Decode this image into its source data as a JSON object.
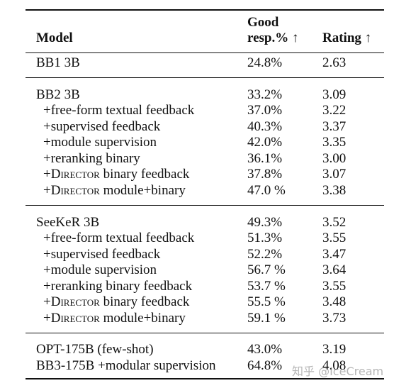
{
  "table": {
    "headers": {
      "model": "Model",
      "good_line1": "Good",
      "good_line2": "resp.% ↑",
      "rating": "Rating ↑"
    },
    "rows": [
      {
        "model": "BB1 3B",
        "good": "24.8%",
        "rating": "2.63"
      },
      {
        "model": "BB2 3B",
        "good": "33.2%",
        "rating": "3.09"
      },
      {
        "model": "+free-form textual feedback",
        "good": "37.0%",
        "rating": "3.22"
      },
      {
        "model": "+supervised feedback",
        "good": "40.3%",
        "rating": "3.37"
      },
      {
        "model": "+module supervision",
        "good": "42.0%",
        "rating": "3.35"
      },
      {
        "model": "+reranking binary",
        "good": "36.1%",
        "rating": "3.00"
      },
      {
        "model_prefix": "+",
        "model_sc": "Director",
        "model_suffix": " binary feedback",
        "good": "37.8%",
        "rating": "3.07"
      },
      {
        "model_prefix": "+",
        "model_sc": "Director",
        "model_suffix": " module+binary",
        "good": "47.0 %",
        "rating": "3.38"
      },
      {
        "model": "SeeKeR 3B",
        "good": "49.3%",
        "rating": "3.52"
      },
      {
        "model": "+free-form textual feedback",
        "good": "51.3%",
        "rating": "3.55"
      },
      {
        "model": "+supervised feedback",
        "good": "52.2%",
        "rating": "3.47"
      },
      {
        "model": "+module supervision",
        "good": "56.7 %",
        "rating": "3.64"
      },
      {
        "model": "+reranking binary feedback",
        "good": "53.7 %",
        "rating": "3.55"
      },
      {
        "model_prefix": "+",
        "model_sc": "Director",
        "model_suffix": " binary feedback",
        "good": "55.5 %",
        "rating": "3.48"
      },
      {
        "model_prefix": "+",
        "model_sc": "Director",
        "model_suffix": " module+binary",
        "good": "59.1 %",
        "rating": "3.73"
      },
      {
        "model": "OPT-175B (few-shot)",
        "good": "43.0%",
        "rating": "3.19"
      },
      {
        "model": "BB3-175B +modular supervision",
        "good": "64.8%",
        "rating": "4.08"
      }
    ]
  },
  "watermark": "知乎 @IceCream"
}
